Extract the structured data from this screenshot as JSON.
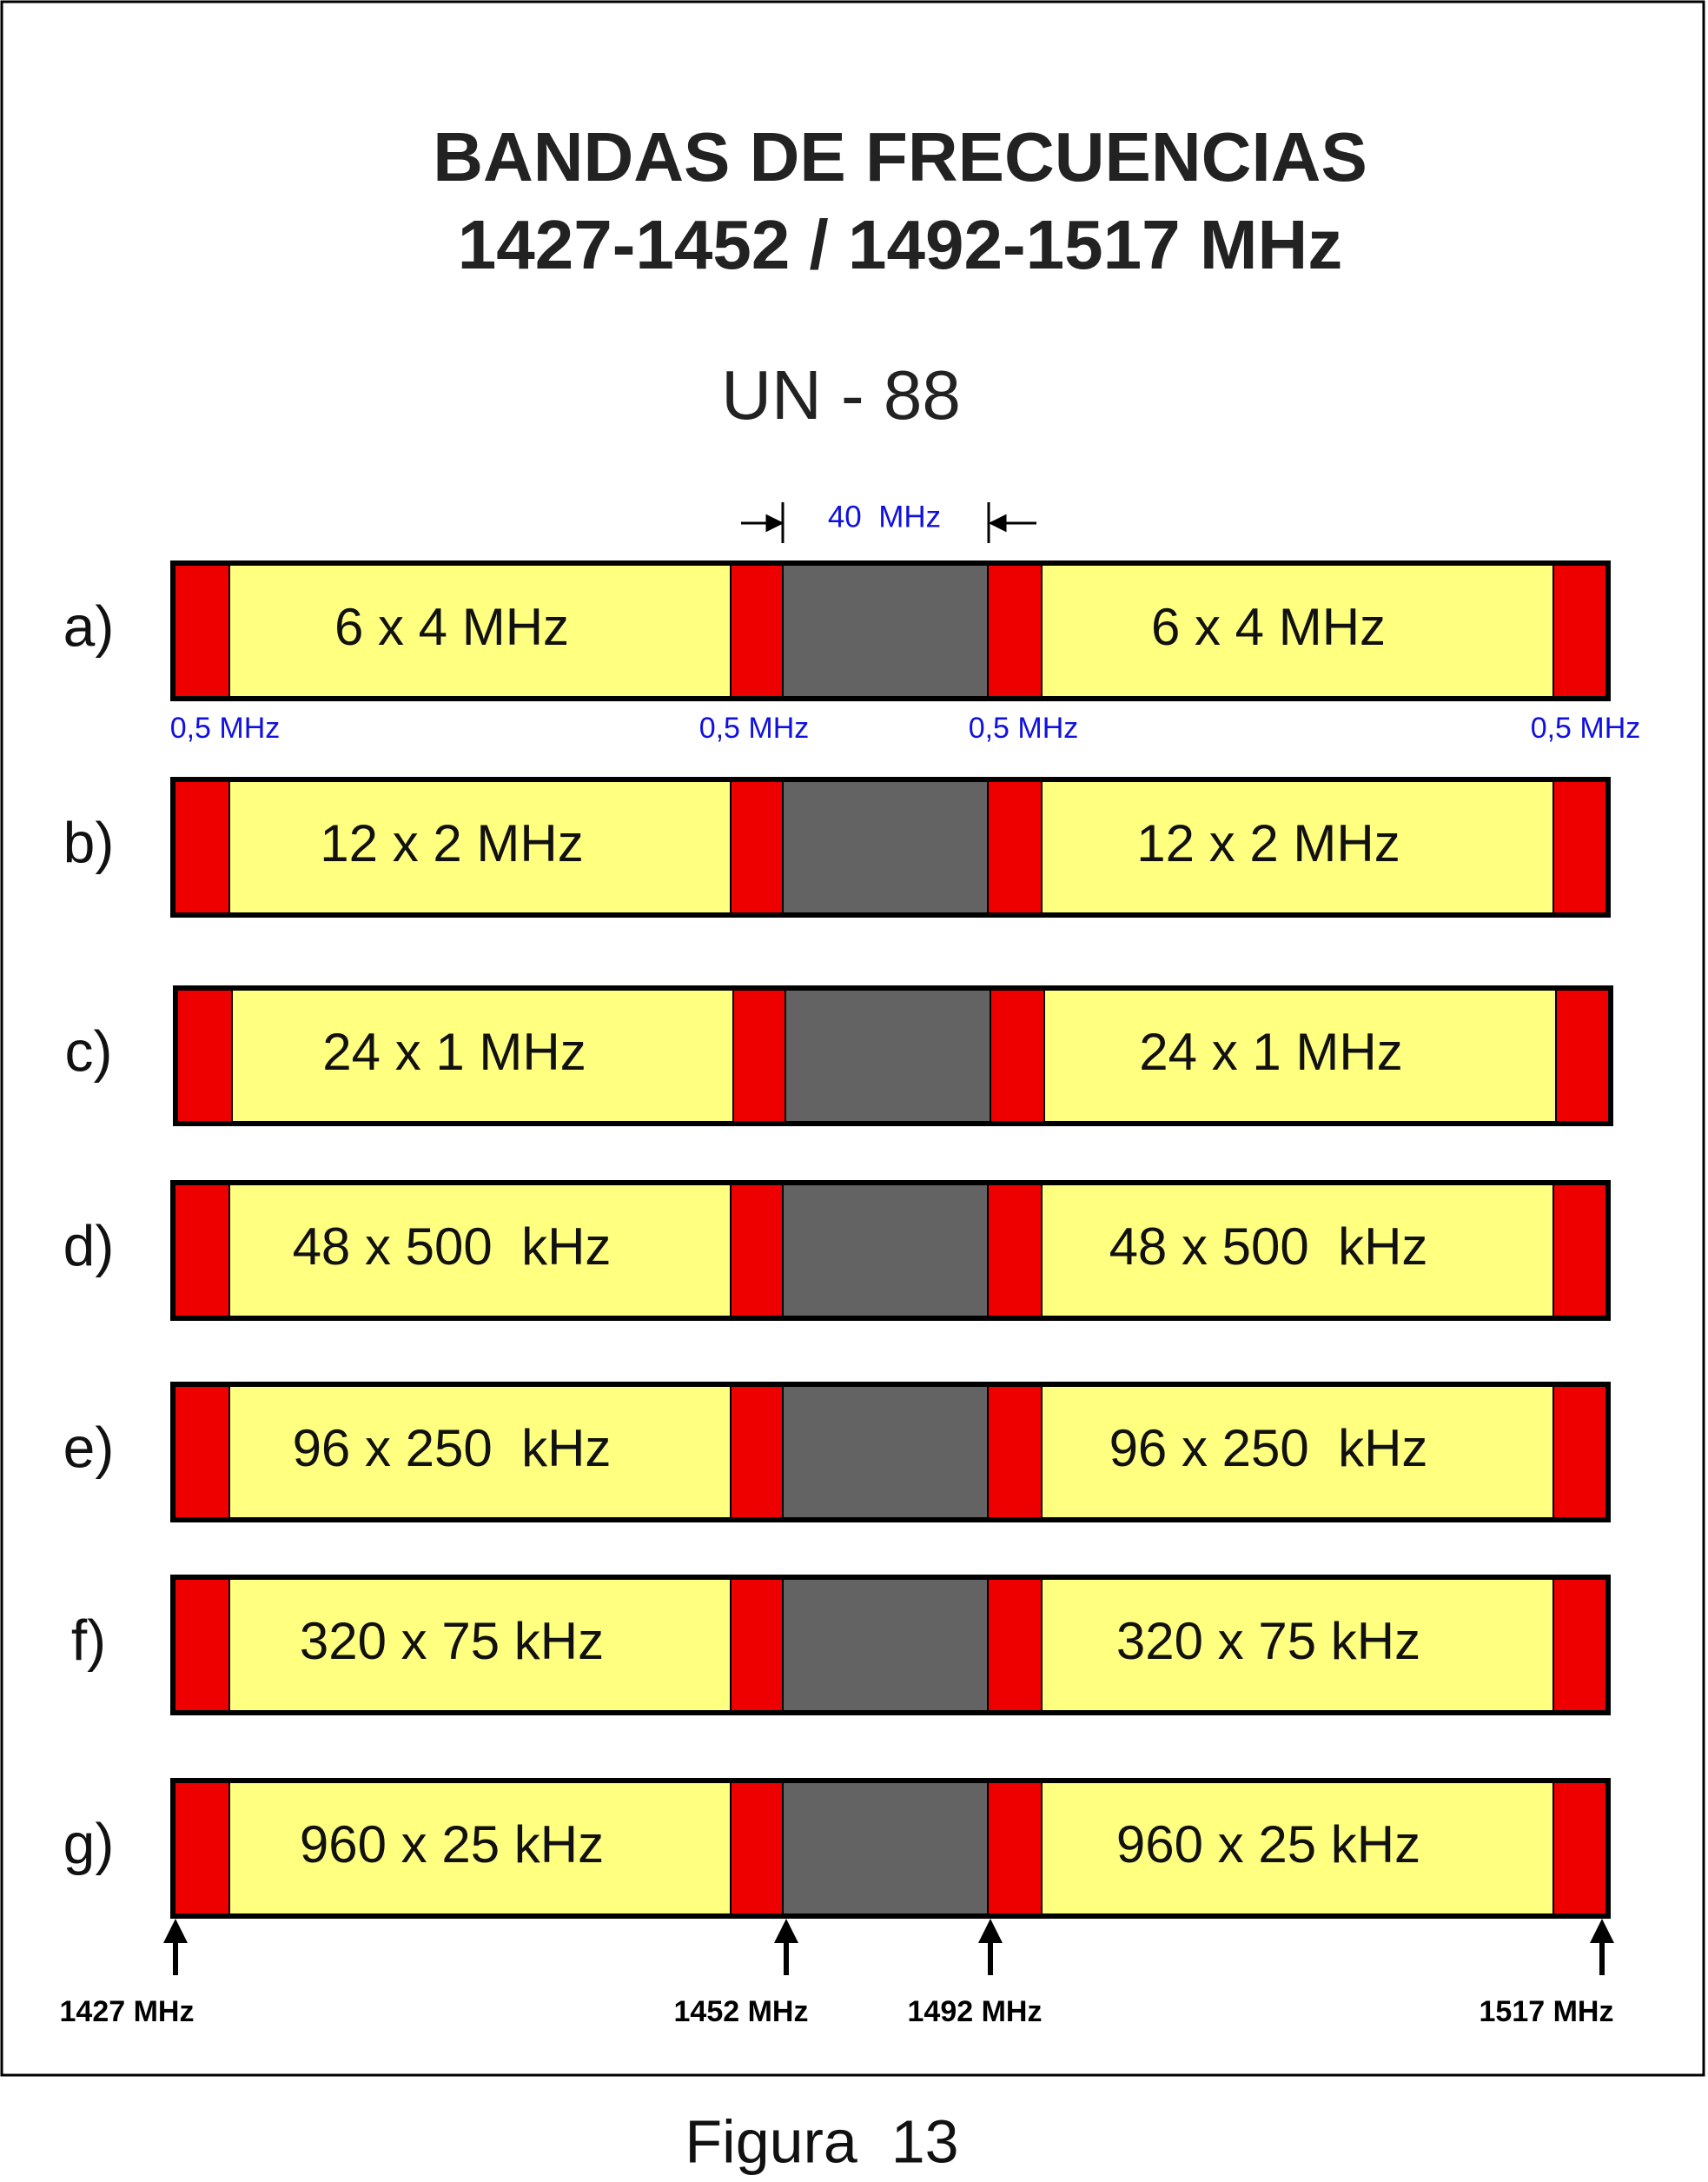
{
  "header": {
    "title": [
      "BANDAS DE FRECUENCIAS",
      "1427-1452 / 1492-1517 MHz"
    ],
    "subtitle": "UN - 88"
  },
  "gap_label": "40  MHz",
  "guard_labels": [
    "0,5 MHz",
    "0,5 MHz",
    "0,5 MHz",
    "0,5 MHz"
  ],
  "rows": [
    {
      "label": "a)",
      "left": "6 x 4 MHz",
      "right": "6 x 4 MHz"
    },
    {
      "label": "b)",
      "left": "12 x 2 MHz",
      "right": "12 x 2 MHz"
    },
    {
      "label": "c)",
      "left": "24 x 1 MHz",
      "right": "24 x 1 MHz"
    },
    {
      "label": "d)",
      "left": "48 x 500  kHz",
      "right": "48 x 500  kHz"
    },
    {
      "label": "e)",
      "left": "96 x 250  kHz",
      "right": "96 x 250  kHz"
    },
    {
      "label": "f)",
      "left": "320 x 75 kHz",
      "right": "320 x 75 kHz"
    },
    {
      "label": "g)",
      "left": "960 x 25 kHz",
      "right": "960 x 25 kHz"
    }
  ],
  "markers": [
    "1427 MHz",
    "1452 MHz",
    "1492 MHz",
    "1517 MHz"
  ],
  "caption": "Figura  13"
}
